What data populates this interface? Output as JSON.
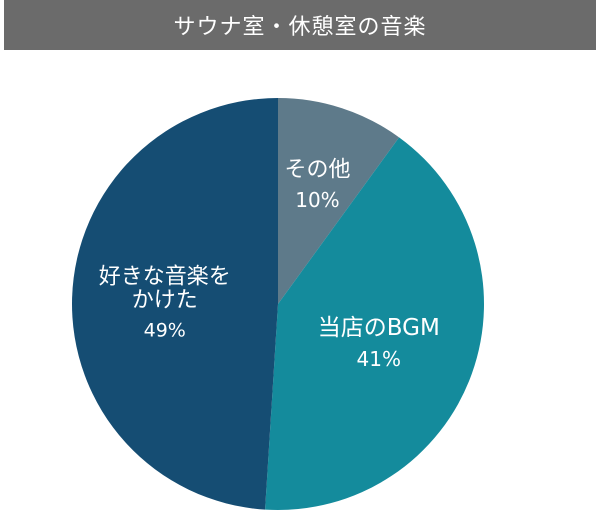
{
  "chart_data": {
    "type": "pie",
    "title": "サウナ室・休憩室の音楽",
    "slices": [
      {
        "label_lines": [
          "その他"
        ],
        "pct_label": "10%",
        "value": 10,
        "color": "#5e7a8a"
      },
      {
        "label_lines": [
          "当店のBGM"
        ],
        "pct_label": "41%",
        "value": 41,
        "color": "#148b9c"
      },
      {
        "label_lines": [
          "好きな音楽を",
          "かけた"
        ],
        "pct_label": "49%",
        "value": 49,
        "color": "#154d73"
      }
    ],
    "start": "12 o'clock",
    "direction": "clockwise",
    "legend": "none",
    "title_bar_color": "#6b6b6b"
  }
}
